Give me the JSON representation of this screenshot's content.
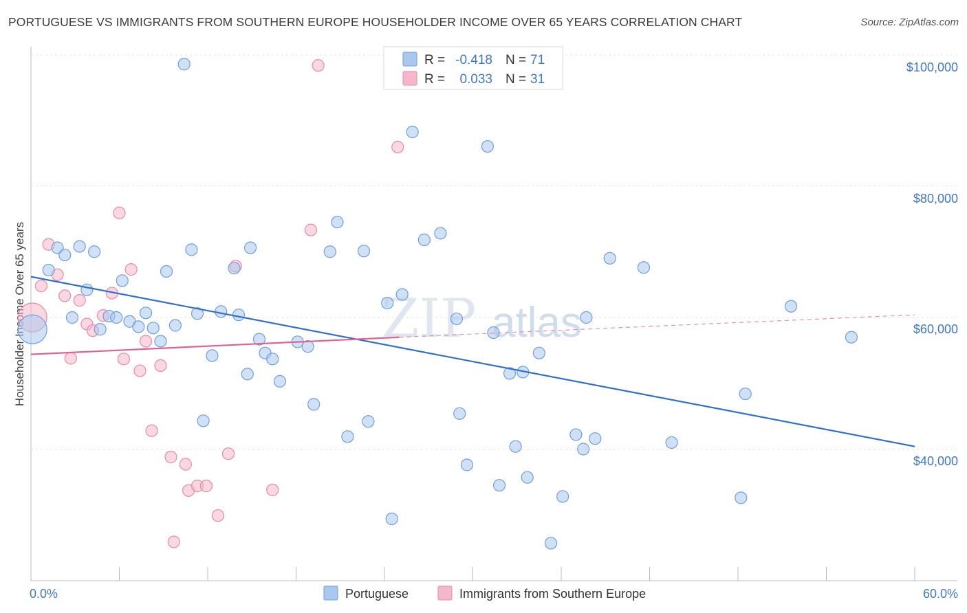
{
  "title": "PORTUGUESE VS IMMIGRANTS FROM SOUTHERN EUROPE HOUSEHOLDER INCOME OVER 65 YEARS CORRELATION CHART",
  "source": "Source: ZipAtlas.com",
  "watermark": {
    "zip": "ZIP",
    "atlas": "atlas"
  },
  "colors": {
    "portuguese_fill": "#a9c8ef",
    "portuguese_stroke": "#6e9fdc",
    "portuguese_line": "#2f6fd1",
    "immigrants_fill": "#f5b8cb",
    "immigrants_stroke": "#e88aa8",
    "immigrants_line": "#e0628f",
    "tick_text": "#3f78c8"
  },
  "legend": {
    "rows": [
      {
        "r_label": "R = ",
        "r_value": "-0.418",
        "n_label": "N = ",
        "n_value": "71"
      },
      {
        "r_label": "R = ",
        "r_value": "0.033",
        "n_label": "N = ",
        "n_value": "31"
      }
    ]
  },
  "chart_data": {
    "type": "scatter",
    "title": "PORTUGUESE VS IMMIGRANTS FROM SOUTHERN EUROPE HOUSEHOLDER INCOME OVER 65 YEARS CORRELATION CHART",
    "xlabel": "",
    "ylabel": "Householder Income Over 65 years",
    "xlim": [
      0,
      60
    ],
    "ylim": [
      20000,
      104000
    ],
    "x_tick_labels": [
      "0.0%",
      "60.0%"
    ],
    "y_ticks": [
      40000,
      60000,
      80000,
      100000
    ],
    "y_tick_labels": [
      "$40,000",
      "$60,000",
      "$80,000",
      "$100,000"
    ],
    "legend_position": "bottom-center",
    "series": [
      {
        "name": "Portuguese",
        "r": -0.418,
        "n": 71,
        "trend": {
          "x": [
            0,
            60
          ],
          "y": [
            66200,
            40400
          ]
        },
        "points": [
          {
            "x": 0.1,
            "y": 58200,
            "big": true
          },
          {
            "x": 1.2,
            "y": 67200
          },
          {
            "x": 1.8,
            "y": 70600
          },
          {
            "x": 2.3,
            "y": 69500
          },
          {
            "x": 2.8,
            "y": 60000
          },
          {
            "x": 3.3,
            "y": 70800
          },
          {
            "x": 3.8,
            "y": 64200
          },
          {
            "x": 4.3,
            "y": 70000
          },
          {
            "x": 4.7,
            "y": 58200
          },
          {
            "x": 5.3,
            "y": 60200
          },
          {
            "x": 5.8,
            "y": 60000
          },
          {
            "x": 6.2,
            "y": 65600
          },
          {
            "x": 6.7,
            "y": 59400
          },
          {
            "x": 7.3,
            "y": 58600
          },
          {
            "x": 7.8,
            "y": 60700
          },
          {
            "x": 8.3,
            "y": 58400
          },
          {
            "x": 8.8,
            "y": 56400
          },
          {
            "x": 9.2,
            "y": 67000
          },
          {
            "x": 9.8,
            "y": 58800
          },
          {
            "x": 10.4,
            "y": 98500
          },
          {
            "x": 10.9,
            "y": 70300
          },
          {
            "x": 11.3,
            "y": 60600
          },
          {
            "x": 11.7,
            "y": 44300
          },
          {
            "x": 12.3,
            "y": 54200
          },
          {
            "x": 12.9,
            "y": 60900
          },
          {
            "x": 13.8,
            "y": 67500
          },
          {
            "x": 14.1,
            "y": 60400
          },
          {
            "x": 14.7,
            "y": 51400
          },
          {
            "x": 14.9,
            "y": 70600
          },
          {
            "x": 15.5,
            "y": 56700
          },
          {
            "x": 15.9,
            "y": 54600
          },
          {
            "x": 16.4,
            "y": 53700
          },
          {
            "x": 16.9,
            "y": 50300
          },
          {
            "x": 18.1,
            "y": 56300
          },
          {
            "x": 18.8,
            "y": 55600
          },
          {
            "x": 19.2,
            "y": 46800
          },
          {
            "x": 20.3,
            "y": 70000
          },
          {
            "x": 20.8,
            "y": 74500
          },
          {
            "x": 21.5,
            "y": 41900
          },
          {
            "x": 22.6,
            "y": 70100
          },
          {
            "x": 22.9,
            "y": 44200
          },
          {
            "x": 24.2,
            "y": 62200
          },
          {
            "x": 24.5,
            "y": 29400
          },
          {
            "x": 25.2,
            "y": 63500
          },
          {
            "x": 25.9,
            "y": 88200
          },
          {
            "x": 26.7,
            "y": 71800
          },
          {
            "x": 27.8,
            "y": 72800
          },
          {
            "x": 28.9,
            "y": 59800
          },
          {
            "x": 29.1,
            "y": 45400
          },
          {
            "x": 29.6,
            "y": 37600
          },
          {
            "x": 31.0,
            "y": 86000
          },
          {
            "x": 31.4,
            "y": 57700
          },
          {
            "x": 31.8,
            "y": 34500
          },
          {
            "x": 32.5,
            "y": 51500
          },
          {
            "x": 32.9,
            "y": 40400
          },
          {
            "x": 33.4,
            "y": 51700
          },
          {
            "x": 33.7,
            "y": 35700
          },
          {
            "x": 34.5,
            "y": 54600
          },
          {
            "x": 35.3,
            "y": 25700
          },
          {
            "x": 36.1,
            "y": 32800
          },
          {
            "x": 37.0,
            "y": 42200
          },
          {
            "x": 37.5,
            "y": 40000
          },
          {
            "x": 37.7,
            "y": 60000
          },
          {
            "x": 38.3,
            "y": 41600
          },
          {
            "x": 39.3,
            "y": 69000
          },
          {
            "x": 41.6,
            "y": 67600
          },
          {
            "x": 43.5,
            "y": 41000
          },
          {
            "x": 48.2,
            "y": 32600
          },
          {
            "x": 48.5,
            "y": 48400
          },
          {
            "x": 51.6,
            "y": 61700
          },
          {
            "x": 55.7,
            "y": 57000
          }
        ]
      },
      {
        "name": "Immigrants from Southern Europe",
        "r": 0.033,
        "n": 31,
        "trend_solid": {
          "x": [
            0,
            25
          ],
          "y": [
            54400,
            57000
          ]
        },
        "trend_dashed": {
          "x": [
            25,
            60
          ],
          "y": [
            57000,
            60400
          ]
        },
        "points": [
          {
            "x": 0.1,
            "y": 60000,
            "big": true
          },
          {
            "x": 0.7,
            "y": 64800
          },
          {
            "x": 1.2,
            "y": 71100
          },
          {
            "x": 1.8,
            "y": 66500
          },
          {
            "x": 2.3,
            "y": 63300
          },
          {
            "x": 2.7,
            "y": 53800
          },
          {
            "x": 3.3,
            "y": 62600
          },
          {
            "x": 3.8,
            "y": 59000
          },
          {
            "x": 4.2,
            "y": 58000
          },
          {
            "x": 4.9,
            "y": 60300
          },
          {
            "x": 5.5,
            "y": 63700
          },
          {
            "x": 6.0,
            "y": 75900
          },
          {
            "x": 6.3,
            "y": 53700
          },
          {
            "x": 6.8,
            "y": 67300
          },
          {
            "x": 7.4,
            "y": 51900
          },
          {
            "x": 7.8,
            "y": 56400
          },
          {
            "x": 8.2,
            "y": 42800
          },
          {
            "x": 8.8,
            "y": 52700
          },
          {
            "x": 9.5,
            "y": 38800
          },
          {
            "x": 9.7,
            "y": 25900
          },
          {
            "x": 10.5,
            "y": 37700
          },
          {
            "x": 10.7,
            "y": 33700
          },
          {
            "x": 11.3,
            "y": 34400
          },
          {
            "x": 11.9,
            "y": 34400
          },
          {
            "x": 12.7,
            "y": 29900
          },
          {
            "x": 13.4,
            "y": 39300
          },
          {
            "x": 13.9,
            "y": 67800
          },
          {
            "x": 16.4,
            "y": 33800
          },
          {
            "x": 19.0,
            "y": 73300
          },
          {
            "x": 19.5,
            "y": 98300
          },
          {
            "x": 24.9,
            "y": 85900
          }
        ]
      }
    ]
  },
  "bottom_legend": [
    {
      "label": "Portuguese"
    },
    {
      "label": "Immigrants from Southern Europe"
    }
  ]
}
